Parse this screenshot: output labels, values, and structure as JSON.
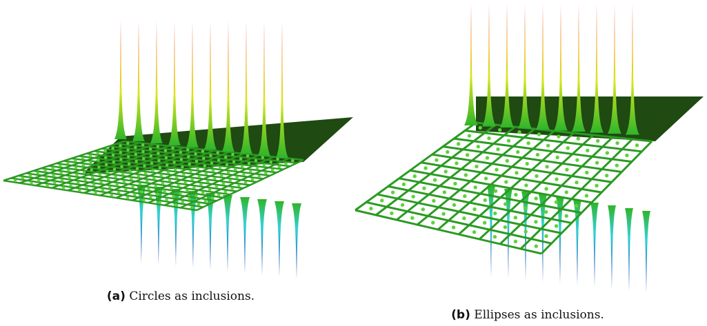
{
  "figures": [
    {
      "label": "(a)",
      "caption": "Circles as inclusions."
    },
    {
      "label": "(b)",
      "caption": "Ellipses as inclusions."
    }
  ]
}
